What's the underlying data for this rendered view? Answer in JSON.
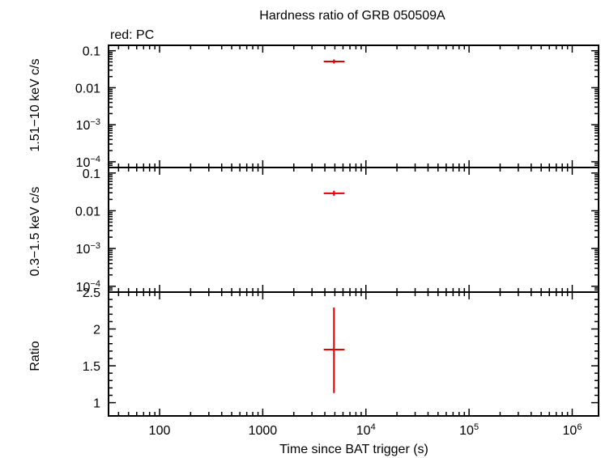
{
  "chart_data": {
    "type": "scatter",
    "title": "Hardness ratio of GRB 050509A",
    "legend": "red: PC",
    "xlabel": "Time since BAT trigger (s)",
    "xscale": "log",
    "xlim": [
      32,
      1800000
    ],
    "x_ticks": [
      {
        "value": 100,
        "base": "100",
        "exp": ""
      },
      {
        "value": 1000,
        "base": "1000",
        "exp": ""
      },
      {
        "value": 10000,
        "base": "10",
        "exp": "4"
      },
      {
        "value": 100000,
        "base": "10",
        "exp": "5"
      },
      {
        "value": 1000000,
        "base": "10",
        "exp": "6"
      }
    ],
    "series_color": "#e00000",
    "panels": [
      {
        "name": "hard",
        "ylabel": "1.51−10 keV c/s",
        "yscale": "log",
        "ylim": [
          7e-05,
          0.14
        ],
        "y_ticks": [
          {
            "value": 0.1,
            "base": "0.1",
            "exp": ""
          },
          {
            "value": 0.01,
            "base": "0.01",
            "exp": ""
          },
          {
            "value": 0.001,
            "base": "10",
            "exp": "−3"
          },
          {
            "value": 0.0001,
            "base": "10",
            "exp": "−4"
          }
        ],
        "points": [
          {
            "x": 4900,
            "xerr_low": 3900,
            "xerr_high": 6200,
            "y": 0.051,
            "yerr_low": 0.045,
            "yerr_high": 0.058
          }
        ]
      },
      {
        "name": "soft",
        "ylabel": "0.3−1.5 keV c/s",
        "yscale": "log",
        "ylim": [
          7e-05,
          0.14
        ],
        "y_ticks": [
          {
            "value": 0.1,
            "base": "0.1",
            "exp": ""
          },
          {
            "value": 0.01,
            "base": "0.01",
            "exp": ""
          },
          {
            "value": 0.001,
            "base": "10",
            "exp": "−3"
          },
          {
            "value": 0.0001,
            "base": "10",
            "exp": "−4"
          }
        ],
        "points": [
          {
            "x": 4900,
            "xerr_low": 3900,
            "xerr_high": 6200,
            "y": 0.029,
            "yerr_low": 0.025,
            "yerr_high": 0.034
          }
        ]
      },
      {
        "name": "ratio",
        "ylabel": "Ratio",
        "yscale": "linear",
        "ylim": [
          0.82,
          2.5
        ],
        "y_ticks": [
          {
            "value": 1,
            "base": "1",
            "exp": ""
          },
          {
            "value": 1.5,
            "base": "1.5",
            "exp": ""
          },
          {
            "value": 2,
            "base": "2",
            "exp": ""
          },
          {
            "value": 2.5,
            "base": "2.5",
            "exp": ""
          }
        ],
        "points": [
          {
            "x": 4900,
            "xerr_low": 3900,
            "xerr_high": 6200,
            "y": 1.72,
            "yerr_low": 1.13,
            "yerr_high": 2.29
          }
        ]
      }
    ]
  }
}
